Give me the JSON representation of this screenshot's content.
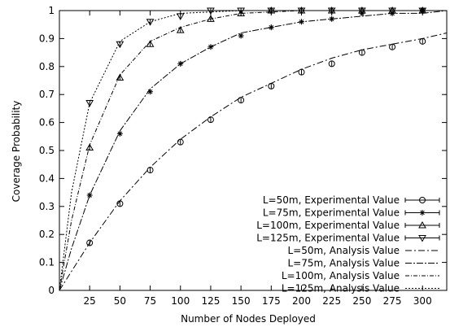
{
  "chart_data": {
    "type": "line",
    "xlabel": "Number of Nodes Deployed",
    "ylabel": "Coverage Probability",
    "xlim": [
      0,
      320
    ],
    "ylim": [
      0,
      1
    ],
    "x_ticks": [
      25,
      50,
      75,
      100,
      125,
      150,
      175,
      200,
      225,
      250,
      275,
      300
    ],
    "y_ticks": [
      0,
      0.1,
      0.2,
      0.3,
      0.4,
      0.5,
      0.6,
      0.7,
      0.8,
      0.9,
      1
    ],
    "grid": false,
    "legend_position": "bottom-right",
    "x": [
      25,
      50,
      75,
      100,
      125,
      150,
      175,
      200,
      225,
      250,
      275,
      300
    ],
    "experimental_series": [
      {
        "name": "L=50m, Experimental Value",
        "marker": "circle",
        "values": [
          0.17,
          0.31,
          0.43,
          0.53,
          0.61,
          0.68,
          0.73,
          0.78,
          0.81,
          0.85,
          0.87,
          0.89
        ]
      },
      {
        "name": "L=75m, Experimental Value",
        "marker": "star",
        "values": [
          0.34,
          0.56,
          0.71,
          0.81,
          0.87,
          0.91,
          0.94,
          0.96,
          0.97,
          0.99,
          0.99,
          1.0
        ]
      },
      {
        "name": "L=100m, Experimental Value",
        "marker": "triangle-up",
        "values": [
          0.51,
          0.76,
          0.88,
          0.93,
          0.97,
          0.99,
          1.0,
          1.0,
          1.0,
          1.0,
          1.0,
          1.0
        ]
      },
      {
        "name": "L=125m, Experimental Value",
        "marker": "triangle-down",
        "values": [
          0.67,
          0.88,
          0.96,
          0.98,
          1.0,
          1.0,
          1.0,
          1.0,
          1.0,
          1.0,
          1.0,
          1.0
        ]
      }
    ],
    "analysis_series": [
      {
        "name": "L=50m, Analysis Value",
        "dash": "8,3,2,3",
        "x": [
          0,
          25,
          50,
          75,
          100,
          125,
          150,
          175,
          200,
          225,
          250,
          275,
          300,
          320
        ],
        "values": [
          0,
          0.17,
          0.32,
          0.44,
          0.54,
          0.62,
          0.69,
          0.74,
          0.79,
          0.83,
          0.86,
          0.88,
          0.9,
          0.92
        ]
      },
      {
        "name": "L=75m, Analysis Value",
        "dash": "8,2,2,2",
        "x": [
          0,
          10,
          25,
          50,
          75,
          100,
          125,
          150,
          175,
          200,
          225,
          250,
          275,
          300,
          320
        ],
        "values": [
          0,
          0.15,
          0.34,
          0.57,
          0.72,
          0.81,
          0.87,
          0.92,
          0.94,
          0.96,
          0.97,
          0.98,
          0.99,
          0.99,
          1.0
        ]
      },
      {
        "name": "L=100m, Analysis Value",
        "dash": "5,2,1,2",
        "x": [
          0,
          10,
          25,
          50,
          75,
          100,
          125,
          150,
          175,
          200,
          250,
          300,
          320
        ],
        "values": [
          0,
          0.25,
          0.52,
          0.77,
          0.89,
          0.94,
          0.97,
          0.99,
          0.995,
          1.0,
          1.0,
          1.0,
          1.0
        ]
      },
      {
        "name": "L=125m, Analysis Value",
        "dash": "2,2",
        "x": [
          0,
          10,
          25,
          50,
          75,
          100,
          125,
          150,
          175,
          200,
          250,
          300,
          320
        ],
        "values": [
          0,
          0.35,
          0.67,
          0.89,
          0.96,
          0.99,
          0.995,
          1.0,
          1.0,
          1.0,
          1.0,
          1.0,
          1.0
        ]
      }
    ]
  }
}
